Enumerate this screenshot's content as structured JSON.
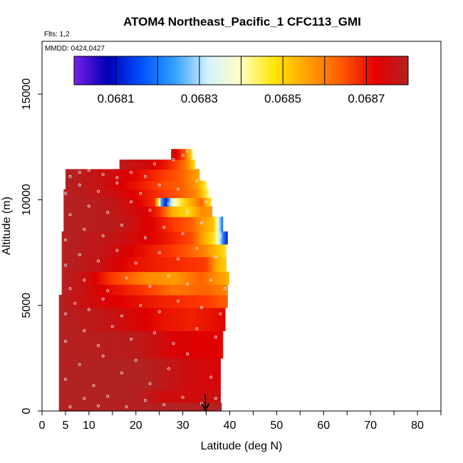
{
  "chart_data": {
    "type": "heatmap",
    "title": "ATOM4 Northeast_Pacific_1 CFC113_GMI",
    "annotations": {
      "flights": "Flts: 1,2",
      "dates": "MMDD: 0424,0427"
    },
    "xlabel": "Latitude (deg N)",
    "ylabel": "Altitude (m)",
    "xlim": [
      0,
      85
    ],
    "ylim": [
      0,
      17500
    ],
    "x_ticks": [
      0,
      10,
      20,
      30,
      40,
      50,
      60,
      70,
      80
    ],
    "x_ticks_extra": [
      5
    ],
    "x_minor_ticks": [
      15,
      25,
      35,
      45,
      55,
      65,
      75,
      85
    ],
    "y_ticks": [
      0,
      5000,
      10000,
      15000
    ],
    "colorbar": {
      "min": 0.068,
      "max": 0.0688,
      "tick_labels": [
        "0.0681",
        "0.0683",
        "0.0685",
        "0.0687"
      ],
      "tick_values": [
        0.0681,
        0.0683,
        0.0685,
        0.0687
      ],
      "divider_values": [
        0.0681,
        0.0682,
        0.0683,
        0.0684,
        0.0685,
        0.0686,
        0.0687
      ],
      "colors": [
        "#7a1fe8",
        "#0000b4",
        "#0050ff",
        "#32a0ff",
        "#d4f2ff",
        "#ffffc0",
        "#ffe600",
        "#ffa000",
        "#ff5a00",
        "#e60000",
        "#b42121"
      ]
    },
    "field_color_scale": [
      "#0000b4",
      "#1e78ff",
      "#bde8ff",
      "#ffffa0",
      "#ffd000",
      "#ff9600",
      "#ff3c00",
      "#de0000",
      "#b22222"
    ],
    "altitude_bands": [
      {
        "alt": [
          0,
          400
        ],
        "lat": [
          3.6,
          38.2
        ],
        "values": [
          [
            3.6,
            0.06878
          ],
          [
            38.2,
            0.06878
          ]
        ]
      },
      {
        "alt": [
          400,
          1000
        ],
        "lat": [
          3.6,
          38.0
        ],
        "values": [
          [
            3.6,
            0.06878
          ],
          [
            20,
            0.06878
          ],
          [
            26,
            0.06872
          ],
          [
            35,
            0.06872
          ],
          [
            38,
            0.06874
          ]
        ]
      },
      {
        "alt": [
          1000,
          2500
        ],
        "lat": [
          3.6,
          38.0
        ],
        "values": [
          [
            3.6,
            0.06878
          ],
          [
            22,
            0.06878
          ],
          [
            30,
            0.06873
          ],
          [
            38,
            0.0687
          ]
        ]
      },
      {
        "alt": [
          2500,
          3800
        ],
        "lat": [
          3.6,
          38.5
        ],
        "values": [
          [
            3.6,
            0.06878
          ],
          [
            20,
            0.06876
          ],
          [
            28,
            0.0687
          ],
          [
            38.5,
            0.06868
          ]
        ]
      },
      {
        "alt": [
          3800,
          4900
        ],
        "lat": [
          3.6,
          39.0
        ],
        "values": [
          [
            3.6,
            0.06878
          ],
          [
            15,
            0.06874
          ],
          [
            26,
            0.06866
          ],
          [
            32,
            0.06864
          ],
          [
            39,
            0.06868
          ]
        ]
      },
      {
        "alt": [
          4900,
          5500
        ],
        "lat": [
          3.6,
          39.5
        ],
        "values": [
          [
            3.6,
            0.06878
          ],
          [
            10,
            0.06872
          ],
          [
            25,
            0.06864
          ],
          [
            35,
            0.0686
          ],
          [
            39.5,
            0.06856
          ]
        ]
      },
      {
        "alt": [
          5500,
          6000
        ],
        "lat": [
          4.2,
          39.5
        ],
        "values": [
          [
            4.2,
            0.06878
          ],
          [
            12,
            0.0687
          ],
          [
            20,
            0.06862
          ],
          [
            28,
            0.06854
          ],
          [
            35,
            0.06856
          ],
          [
            39.5,
            0.06852
          ]
        ]
      },
      {
        "alt": [
          6000,
          6600
        ],
        "lat": [
          4.2,
          39.8
        ],
        "values": [
          [
            4.2,
            0.06878
          ],
          [
            10,
            0.06872
          ],
          [
            15,
            0.0686
          ],
          [
            22,
            0.06852
          ],
          [
            28,
            0.0685
          ],
          [
            34,
            0.06856
          ],
          [
            38,
            0.0685
          ],
          [
            39.8,
            0.06846
          ]
        ]
      },
      {
        "alt": [
          6600,
          7300
        ],
        "lat": [
          4.2,
          39.2
        ],
        "values": [
          [
            4.2,
            0.06878
          ],
          [
            12,
            0.06874
          ],
          [
            20,
            0.06866
          ],
          [
            30,
            0.06862
          ],
          [
            35,
            0.0686
          ],
          [
            37.5,
            0.06846
          ],
          [
            39.2,
            0.06842
          ]
        ]
      },
      {
        "alt": [
          7300,
          7900
        ],
        "lat": [
          4.2,
          39.2
        ],
        "values": [
          [
            4.2,
            0.06878
          ],
          [
            14,
            0.06874
          ],
          [
            22,
            0.06866
          ],
          [
            30,
            0.06858
          ],
          [
            35,
            0.06852
          ],
          [
            37.5,
            0.06844
          ],
          [
            39.2,
            0.06838
          ]
        ]
      },
      {
        "alt": [
          7900,
          8500
        ],
        "lat": [
          4.2,
          39.5
        ],
        "values": [
          [
            4.2,
            0.06878
          ],
          [
            16,
            0.06874
          ],
          [
            26,
            0.06866
          ],
          [
            32,
            0.06858
          ],
          [
            35,
            0.06846
          ],
          [
            37,
            0.06836
          ],
          [
            38.5,
            0.06815
          ],
          [
            39.5,
            0.06808
          ]
        ]
      },
      {
        "alt": [
          8500,
          9200
        ],
        "lat": [
          4.6,
          38.5
        ],
        "values": [
          [
            4.6,
            0.06878
          ],
          [
            16,
            0.06876
          ],
          [
            24,
            0.06868
          ],
          [
            28,
            0.0686
          ],
          [
            32,
            0.06856
          ],
          [
            35,
            0.06848
          ],
          [
            36.5,
            0.06844
          ],
          [
            38.5,
            0.06812
          ]
        ]
      },
      {
        "alt": [
          9200,
          9700
        ],
        "lat": [
          4.6,
          36.2
        ],
        "values": [
          [
            4.6,
            0.06878
          ],
          [
            14,
            0.06876
          ],
          [
            22,
            0.0687
          ],
          [
            25,
            0.06862
          ],
          [
            28,
            0.06846
          ],
          [
            31,
            0.0684
          ],
          [
            34,
            0.06852
          ],
          [
            36.2,
            0.0685
          ]
        ]
      },
      {
        "alt": [
          9700,
          10100
        ],
        "lat": [
          4.6,
          36.0
        ],
        "values": [
          [
            4.6,
            0.06878
          ],
          [
            14,
            0.06876
          ],
          [
            20,
            0.0687
          ],
          [
            24,
            0.06862
          ],
          [
            25.5,
            0.06815
          ],
          [
            26.5,
            0.06808
          ],
          [
            28,
            0.0683
          ],
          [
            31,
            0.06844
          ],
          [
            34,
            0.06856
          ],
          [
            36,
            0.06838
          ]
        ]
      },
      {
        "alt": [
          10100,
          10500
        ],
        "lat": [
          4.6,
          35.5
        ],
        "values": [
          [
            4.6,
            0.06878
          ],
          [
            14,
            0.06874
          ],
          [
            20,
            0.06868
          ],
          [
            26,
            0.0686
          ],
          [
            30,
            0.06856
          ],
          [
            33,
            0.06852
          ],
          [
            35.5,
            0.06834
          ]
        ]
      },
      {
        "alt": [
          10500,
          10900
        ],
        "lat": [
          5.0,
          35.0
        ],
        "values": [
          [
            5.0,
            0.06878
          ],
          [
            12,
            0.06874
          ],
          [
            20,
            0.06866
          ],
          [
            26,
            0.06858
          ],
          [
            30,
            0.06856
          ],
          [
            33,
            0.0685
          ],
          [
            35,
            0.06836
          ]
        ]
      },
      {
        "alt": [
          10900,
          11450
        ],
        "lat": [
          5.0,
          33.5
        ],
        "values": [
          [
            5.0,
            0.06878
          ],
          [
            12,
            0.06874
          ],
          [
            20,
            0.06868
          ],
          [
            26,
            0.0686
          ],
          [
            30,
            0.06856
          ],
          [
            33.5,
            0.06848
          ]
        ]
      },
      {
        "alt": [
          11450,
          11900
        ],
        "lat": [
          16.5,
          32.5
        ],
        "values": [
          [
            16.5,
            0.06876
          ],
          [
            22,
            0.06872
          ],
          [
            26,
            0.06866
          ],
          [
            29,
            0.06858
          ],
          [
            31,
            0.06852
          ],
          [
            32.5,
            0.0684
          ]
        ]
      },
      {
        "alt": [
          11900,
          12400
        ],
        "lat": [
          27.5,
          32.0
        ],
        "values": [
          [
            27.5,
            0.06874
          ],
          [
            29,
            0.06866
          ],
          [
            30.5,
            0.06856
          ],
          [
            31.5,
            0.06846
          ],
          [
            32,
            0.06836
          ]
        ]
      }
    ],
    "sample_points": [
      [
        6,
        200
      ],
      [
        9,
        600
      ],
      [
        12,
        250
      ],
      [
        14,
        700
      ],
      [
        18,
        200
      ],
      [
        22,
        500
      ],
      [
        26,
        300
      ],
      [
        30,
        650
      ],
      [
        34,
        350
      ],
      [
        37,
        600
      ],
      [
        5,
        1500
      ],
      [
        8,
        2200
      ],
      [
        11,
        1200
      ],
      [
        13,
        2600
      ],
      [
        17,
        1800
      ],
      [
        20,
        2400
      ],
      [
        23,
        1300
      ],
      [
        27,
        2000
      ],
      [
        31,
        2700
      ],
      [
        36,
        1600
      ],
      [
        5,
        3300
      ],
      [
        9,
        3800
      ],
      [
        12,
        3100
      ],
      [
        15,
        4000
      ],
      [
        19,
        3400
      ],
      [
        24,
        3700
      ],
      [
        28,
        3200
      ],
      [
        33,
        3900
      ],
      [
        37,
        3500
      ],
      [
        5,
        4600
      ],
      [
        7,
        5100
      ],
      [
        10,
        4800
      ],
      [
        13,
        5300
      ],
      [
        17,
        4500
      ],
      [
        21,
        5000
      ],
      [
        25,
        4700
      ],
      [
        29,
        5200
      ],
      [
        34,
        4900
      ],
      [
        38,
        4600
      ],
      [
        6,
        5800
      ],
      [
        9,
        6200
      ],
      [
        14,
        5700
      ],
      [
        18,
        6300
      ],
      [
        23,
        5900
      ],
      [
        27,
        6400
      ],
      [
        31,
        6000
      ],
      [
        36,
        6200
      ],
      [
        39,
        5800
      ],
      [
        5,
        6900
      ],
      [
        8,
        7400
      ],
      [
        12,
        7100
      ],
      [
        16,
        7600
      ],
      [
        20,
        7000
      ],
      [
        25,
        7500
      ],
      [
        29,
        7200
      ],
      [
        33,
        7700
      ],
      [
        37,
        7300
      ],
      [
        5,
        8100
      ],
      [
        9,
        8600
      ],
      [
        13,
        8300
      ],
      [
        17,
        8800
      ],
      [
        22,
        8200
      ],
      [
        26,
        8700
      ],
      [
        30,
        8400
      ],
      [
        34,
        8900
      ],
      [
        38,
        8300
      ],
      [
        6,
        9300
      ],
      [
        10,
        9700
      ],
      [
        14,
        9400
      ],
      [
        19,
        9900
      ],
      [
        23,
        9500
      ],
      [
        27,
        9800
      ],
      [
        31,
        9400
      ],
      [
        35,
        9900
      ],
      [
        5,
        10300
      ],
      [
        8,
        10700
      ],
      [
        12,
        10400
      ],
      [
        16,
        10800
      ],
      [
        21,
        10300
      ],
      [
        25,
        10700
      ],
      [
        29,
        10500
      ],
      [
        33,
        10900
      ],
      [
        6,
        11100
      ],
      [
        8,
        11300
      ],
      [
        10,
        11400
      ],
      [
        13,
        11200
      ],
      [
        16,
        11050
      ],
      [
        19,
        11300
      ],
      [
        22,
        11100
      ],
      [
        24,
        11700
      ],
      [
        28,
        11900
      ],
      [
        30,
        12100
      ],
      [
        31,
        12300
      ]
    ],
    "marker_arrow": {
      "x": 34.8,
      "y_top": 800,
      "y_bottom": 0
    }
  }
}
